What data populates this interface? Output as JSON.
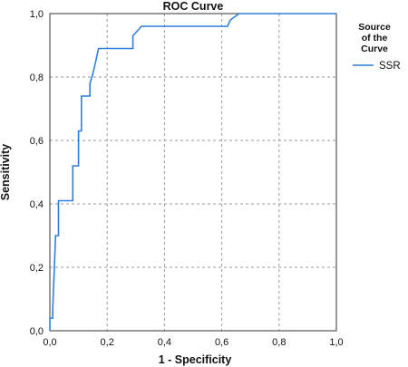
{
  "chart_data": {
    "type": "line",
    "title": "ROC Curve",
    "xlabel": "1 - Specificity",
    "ylabel": "Sensitivity",
    "xlim": [
      0,
      1
    ],
    "ylim": [
      0,
      1
    ],
    "grid": true,
    "x_ticks": [
      "0,0",
      "0,2",
      "0,4",
      "0,6",
      "0,8",
      "1,0"
    ],
    "y_ticks": [
      "0,0",
      "0,2",
      "0,4",
      "0,6",
      "0,8",
      "1,0"
    ],
    "legend": {
      "title_lines": [
        "Source",
        "of the",
        "Curve"
      ],
      "position": "right"
    },
    "series": [
      {
        "name": "SSR",
        "color": "#2f7ed8",
        "x": [
          0.0,
          0.0,
          0.01,
          0.01,
          0.02,
          0.03,
          0.03,
          0.08,
          0.08,
          0.1,
          0.1,
          0.11,
          0.11,
          0.12,
          0.12,
          0.14,
          0.14,
          0.15,
          0.16,
          0.17,
          0.17,
          0.29,
          0.29,
          0.32,
          0.32,
          0.62,
          0.63,
          0.66,
          1.0
        ],
        "y": [
          0.0,
          0.04,
          0.04,
          0.07,
          0.3,
          0.3,
          0.41,
          0.41,
          0.52,
          0.52,
          0.63,
          0.63,
          0.74,
          0.74,
          0.74,
          0.74,
          0.78,
          0.81,
          0.85,
          0.89,
          0.89,
          0.89,
          0.93,
          0.96,
          0.96,
          0.96,
          0.98,
          1.0,
          1.0
        ]
      }
    ]
  }
}
